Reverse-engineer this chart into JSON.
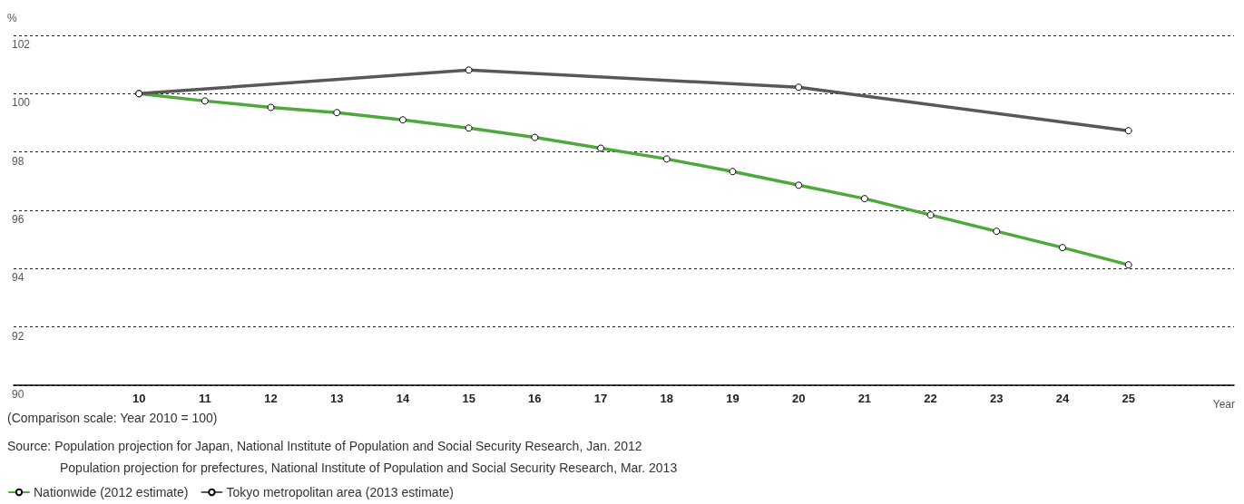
{
  "chart_data": {
    "type": "line",
    "ylabel": "%",
    "xlabel": "Year",
    "x": [
      10,
      11,
      12,
      13,
      14,
      15,
      16,
      17,
      18,
      19,
      20,
      21,
      22,
      23,
      24,
      25
    ],
    "series": [
      {
        "name": "Nationwide (2012 estimate)",
        "color": "#4ea83c",
        "values": [
          100,
          99.75,
          99.53,
          99.35,
          99.1,
          98.82,
          98.5,
          98.13,
          97.76,
          97.33,
          96.86,
          96.4,
          95.84,
          95.28,
          94.72,
          94.13
        ]
      },
      {
        "name": "Tokyo metropolitan area (2013 estimate)",
        "color": "#585858",
        "x": [
          10,
          15,
          20,
          25
        ],
        "values": [
          100,
          100.81,
          100.22,
          98.73
        ]
      }
    ],
    "xlim": [
      8.1,
      26.6
    ],
    "xticks": [
      10,
      11,
      12,
      13,
      14,
      15,
      16,
      17,
      18,
      19,
      20,
      21,
      22,
      23,
      24,
      25
    ],
    "ylim": [
      90,
      102
    ],
    "yticks": [
      90,
      92,
      94,
      96,
      98,
      100,
      102
    ],
    "grid": "y",
    "legend": "bottom left",
    "marker": "circle",
    "line_style": "solid",
    "annotations": [
      "(Comparison scale: Year 2010 = 100)",
      "Source: Population projection for Japan, National Institute of Population and Social Security Research, Jan. 2012",
      "Population projection for prefectures, National Institute of Population and Social Security Research, Mar. 2013"
    ]
  }
}
